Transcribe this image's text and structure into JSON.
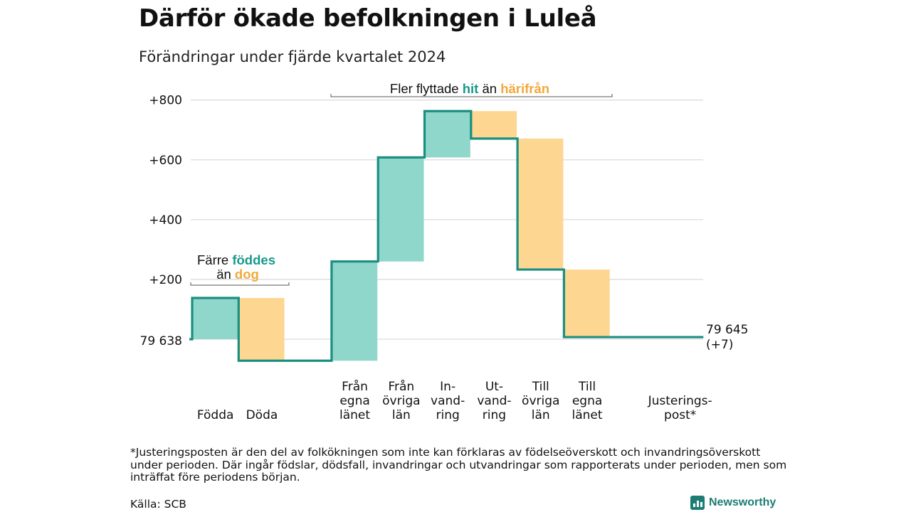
{
  "title": "Därför ökade befolkningen i Luleå",
  "subtitle": "Förändringar under fjärde kvartalet 2024",
  "colors": {
    "increase": "#8fd6cb",
    "decrease": "#fdd792",
    "line": "#1a8f80",
    "teal_text": "#17998a",
    "orange_text": "#f2a93b"
  },
  "chart_data": {
    "type": "waterfall",
    "start_value": 79638,
    "start_label": "79 638",
    "end_value": 79645,
    "end_label": "79 645",
    "end_change_label": "(+7)",
    "y_ticks": [
      "+200",
      "+400",
      "+600",
      "+800"
    ],
    "y_tick_values": [
      200,
      400,
      600,
      800
    ],
    "ylim": [
      -80,
      830
    ],
    "steps": [
      {
        "label": "Födda",
        "change": 138,
        "kind": "increase"
      },
      {
        "label": "Döda",
        "change": -210,
        "kind": "decrease"
      },
      {
        "label": "Från egna länet",
        "change": 332,
        "kind": "increase"
      },
      {
        "label": "Från övriga län",
        "change": 348,
        "kind": "increase"
      },
      {
        "label": "Invandring",
        "change": 155,
        "kind": "increase"
      },
      {
        "label": "Utvandring",
        "change": -92,
        "kind": "decrease"
      },
      {
        "label": "Till övriga län",
        "change": -438,
        "kind": "decrease"
      },
      {
        "label": "Till egna länet",
        "change": -226,
        "kind": "decrease"
      },
      {
        "label": "Justeringspost*",
        "change": 0,
        "kind": "adjustment"
      }
    ],
    "category_label_lines": [
      [
        "Födda"
      ],
      [
        "Döda"
      ],
      [
        "Från",
        "egna",
        "länet"
      ],
      [
        "Från",
        "övriga",
        "län"
      ],
      [
        "In-",
        "vand-",
        "ring"
      ],
      [
        "Ut-",
        "vand-",
        "ring"
      ],
      [
        "Till",
        "övriga",
        "län"
      ],
      [
        "Till",
        "egna",
        "länet"
      ],
      [
        "Justerings-",
        "post*"
      ]
    ]
  },
  "annotations": {
    "births_line1_prefix": "Färre",
    "births_line1_highlight": "föddes",
    "births_line2_prefix": "än",
    "births_line2_highlight": "dog",
    "migration_prefix": "Fler flyttade",
    "migration_highlight_in": "hit",
    "migration_middle": "än",
    "migration_highlight_out": "härifrån"
  },
  "footnote": "*Justeringsposten är den del av folkökningen som inte kan förklaras av födelseöverskott och invandringsöverskott under perioden. Där ingår födslar, dödsfall, invandringar och utvandringar som rapporterats under perioden, men som inträffat före periodens början.",
  "source": "Källa: SCB",
  "brand": "Newsworthy",
  "brand_icon": "newsworthy-logo-icon"
}
